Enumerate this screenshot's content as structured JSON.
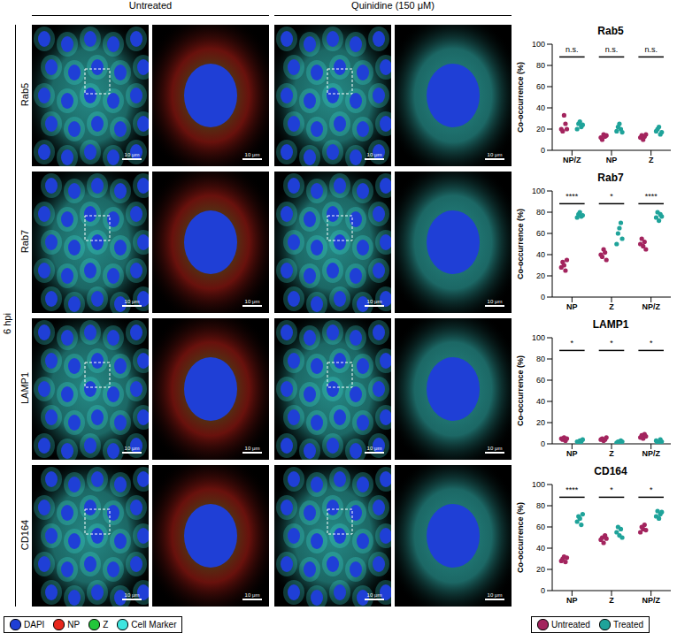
{
  "figure": {
    "columns": [
      "Untreated",
      "Quinidine (150 μM)"
    ],
    "timepoint": "6 hpi",
    "rows": [
      "Rab5",
      "Rab7",
      "LAMP1",
      "CD164"
    ],
    "scale_bar": "10 μm",
    "channels": [
      {
        "name": "DAPI",
        "color": "#1f3fd6"
      },
      {
        "name": "NP",
        "color": "#e8261c"
      },
      {
        "name": "Z",
        "color": "#22c73a"
      },
      {
        "name": "Cell Marker",
        "color": "#3ee6e0"
      }
    ]
  },
  "chart_data": [
    {
      "type": "scatter",
      "title": "Rab5",
      "ylabel": "Co-occurrence (%)",
      "categories": [
        "NP/Z",
        "NP",
        "Z"
      ],
      "series": [
        {
          "name": "Untreated",
          "color": "#a3245e",
          "values": [
            [
              20,
              18,
              33,
              25,
              20
            ],
            [
              12,
              10,
              15,
              13,
              14
            ],
            [
              12,
              14,
              10,
              13,
              15
            ]
          ]
        },
        {
          "name": "Treated",
          "color": "#1fa39a",
          "values": [
            [
              20,
              25,
              27,
              22,
              24
            ],
            [
              18,
              22,
              25,
              20,
              17
            ],
            [
              18,
              20,
              22,
              15,
              17
            ]
          ]
        }
      ],
      "annotations": [
        "n.s.",
        "n.s.",
        "n.s."
      ],
      "ylim": [
        0,
        100
      ],
      "yticks": [
        0,
        20,
        40,
        60,
        80,
        100
      ]
    },
    {
      "type": "scatter",
      "title": "Rab7",
      "ylabel": "Co-occurrence (%)",
      "categories": [
        "NP",
        "Z",
        "NP/Z"
      ],
      "series": [
        {
          "name": "Untreated",
          "color": "#a3245e",
          "values": [
            [
              28,
              33,
              30,
              25,
              35
            ],
            [
              40,
              38,
              45,
              42,
              35
            ],
            [
              50,
              55,
              48,
              52,
              45
            ]
          ]
        },
        {
          "name": "Treated",
          "color": "#1fa39a",
          "values": [
            [
              75,
              78,
              80,
              76,
              77
            ],
            [
              50,
              60,
              65,
              70,
              55
            ],
            [
              75,
              80,
              72,
              78,
              76
            ]
          ]
        }
      ],
      "annotations": [
        "****",
        "*",
        "****"
      ],
      "ylim": [
        0,
        100
      ],
      "yticks": [
        0,
        20,
        40,
        60,
        80,
        100
      ]
    },
    {
      "type": "scatter",
      "title": "LAMP1",
      "ylabel": "Co-occurrence (%)",
      "categories": [
        "NP",
        "Z",
        "NP/Z"
      ],
      "series": [
        {
          "name": "Untreated",
          "color": "#a3245e",
          "values": [
            [
              5,
              4,
              6,
              3,
              5
            ],
            [
              4,
              5,
              3,
              4,
              6
            ],
            [
              6,
              8,
              5,
              9,
              7
            ]
          ]
        },
        {
          "name": "Treated",
          "color": "#1fa39a",
          "values": [
            [
              2,
              1,
              3,
              2,
              4
            ],
            [
              1,
              2,
              1,
              3,
              2
            ],
            [
              3,
              1,
              2,
              4,
              2
            ]
          ]
        }
      ],
      "annotations": [
        "*",
        "*",
        "*"
      ],
      "ylim": [
        0,
        100
      ],
      "yticks": [
        0,
        20,
        40,
        60,
        80,
        100
      ]
    },
    {
      "type": "scatter",
      "title": "CD164",
      "ylabel": "Co-occurrence (%)",
      "categories": [
        "NP",
        "Z",
        "NP/Z"
      ],
      "series": [
        {
          "name": "Untreated",
          "color": "#a3245e",
          "values": [
            [
              28,
              30,
              32,
              27,
              31
            ],
            [
              48,
              50,
              45,
              52,
              49
            ],
            [
              55,
              60,
              58,
              62,
              57
            ]
          ]
        },
        {
          "name": "Treated",
          "color": "#1fa39a",
          "values": [
            [
              65,
              70,
              68,
              62,
              72
            ],
            [
              55,
              60,
              52,
              58,
              50
            ],
            [
              70,
              75,
              68,
              72,
              74
            ]
          ]
        }
      ],
      "annotations": [
        "****",
        "*",
        "*"
      ],
      "ylim": [
        0,
        100
      ],
      "yticks": [
        0,
        20,
        40,
        60,
        80,
        100
      ]
    }
  ]
}
